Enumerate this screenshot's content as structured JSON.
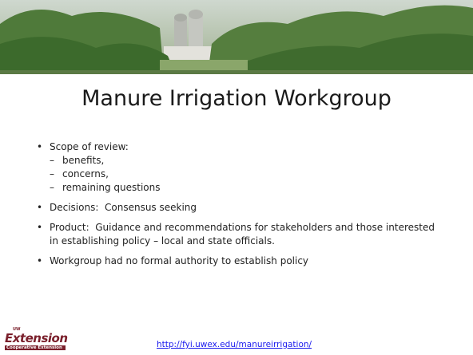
{
  "header": {
    "title": "Manure Irrigation Workgroup"
  },
  "bullets": [
    {
      "text": "Scope of review:",
      "subitems": [
        "benefits,",
        "concerns,",
        "remaining questions"
      ]
    },
    {
      "text": "Decisions:  Consensus seeking"
    },
    {
      "text": "Product:  Guidance and recommendations for stakeholders and those interested in establishing policy – local and state officials."
    },
    {
      "text": "Workgroup had no formal authority to establish policy"
    }
  ],
  "footer": {
    "logo": {
      "small": "UW",
      "name": "Extension",
      "tagline": "Cooperative Extension"
    },
    "link": "http://fyi.uwex.edu/manureirrigation/"
  }
}
